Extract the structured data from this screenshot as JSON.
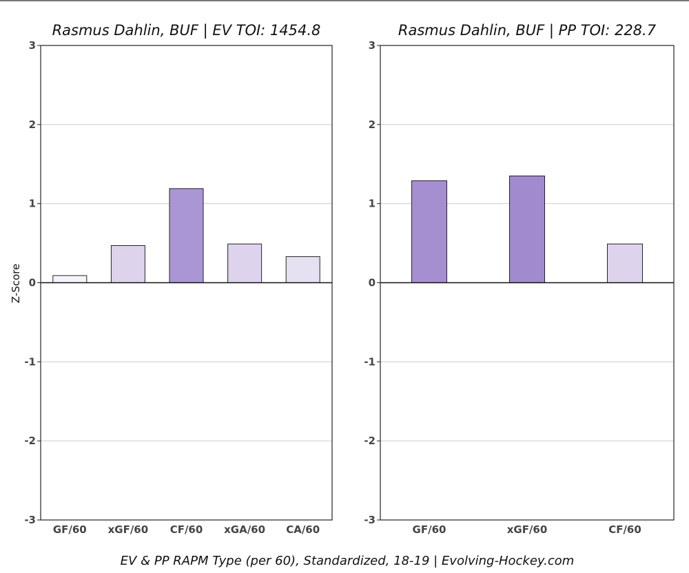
{
  "chart_data": [
    {
      "type": "bar",
      "title": "Rasmus Dahlin, BUF  |  EV TOI: 1454.8",
      "ylabel": "Z-Score",
      "ylim": [
        -3,
        3
      ],
      "yticks": [
        -3,
        -2,
        -1,
        0,
        1,
        2,
        3
      ],
      "grid": true,
      "categories": [
        "GF/60",
        "xGF/60",
        "CF/60",
        "xGA/60",
        "CA/60"
      ],
      "values": [
        0.09,
        0.47,
        1.19,
        0.49,
        0.33
      ],
      "colors": [
        "#f6f4fb",
        "#ddd3ec",
        "#aa96d4",
        "#ddd3ec",
        "#e6e0f3"
      ]
    },
    {
      "type": "bar",
      "title": "Rasmus Dahlin, BUF  |  PP TOI: 228.7",
      "ylabel": "",
      "ylim": [
        -3,
        3
      ],
      "yticks": [
        -3,
        -2,
        -1,
        0,
        1,
        2,
        3
      ],
      "grid": true,
      "categories": [
        "GF/60",
        "xGF/60",
        "CF/60"
      ],
      "values": [
        1.29,
        1.35,
        0.49
      ],
      "colors": [
        "#a68fd0",
        "#a18ace",
        "#ddd3ec"
      ]
    }
  ],
  "footer": "EV & PP RAPM Type (per 60), Standardized, 18-19    |    Evolving-Hockey.com"
}
